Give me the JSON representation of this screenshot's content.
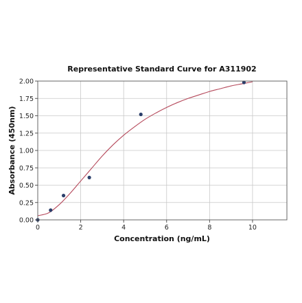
{
  "chart_data": {
    "type": "scatter",
    "title": "Representative Standard Curve for A311902",
    "xlabel": "Concentration (ng/mL)",
    "ylabel": "Absorbance (450nm)",
    "xlim": [
      0,
      11.6
    ],
    "ylim": [
      0,
      2.0
    ],
    "x_ticks": [
      0,
      2,
      4,
      6,
      8,
      10
    ],
    "y_ticks": [
      0.0,
      0.25,
      0.5,
      0.75,
      1.0,
      1.25,
      1.5,
      1.75,
      2.0
    ],
    "x_tick_labels": [
      "0",
      "2",
      "4",
      "6",
      "8",
      "10"
    ],
    "y_tick_labels": [
      "0.00",
      "0.25",
      "0.50",
      "0.75",
      "1.00",
      "1.25",
      "1.50",
      "1.75",
      "2.00"
    ],
    "grid": true,
    "series": [
      {
        "x": [
          0,
          0.6,
          1.2,
          2.4,
          4.8,
          9.6
        ],
        "y": [
          0.0,
          0.14,
          0.35,
          0.61,
          1.52,
          1.98
        ],
        "color": "#2b3f6b"
      }
    ],
    "fit_curve": {
      "x": [
        0,
        0.5,
        1,
        1.5,
        2,
        2.5,
        3,
        3.5,
        4,
        4.5,
        5,
        5.5,
        6,
        6.5,
        7,
        7.5,
        8,
        8.5,
        9,
        9.5,
        10
      ],
      "y": [
        0.06,
        0.1,
        0.22,
        0.38,
        0.56,
        0.74,
        0.92,
        1.08,
        1.22,
        1.34,
        1.45,
        1.54,
        1.62,
        1.69,
        1.75,
        1.8,
        1.85,
        1.89,
        1.93,
        1.96,
        1.99
      ],
      "color": "#b5485a"
    }
  }
}
